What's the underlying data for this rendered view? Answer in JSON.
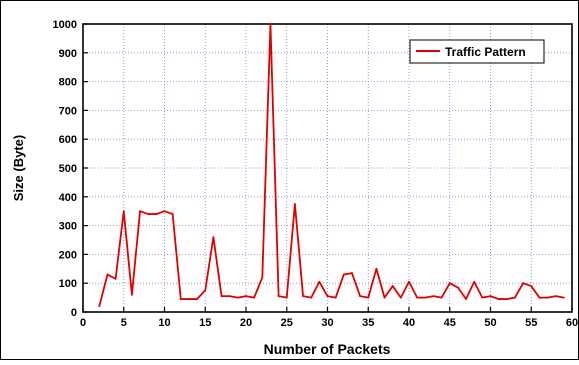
{
  "chart_data": {
    "type": "line",
    "xlabel": "Number of Packets",
    "ylabel": "Size (Byte)",
    "xlim": [
      0,
      60
    ],
    "ylim": [
      0,
      1000
    ],
    "x_ticks": [
      0,
      5,
      10,
      15,
      20,
      25,
      30,
      35,
      40,
      45,
      50,
      55,
      60
    ],
    "y_ticks": [
      0,
      100,
      200,
      300,
      400,
      500,
      600,
      700,
      800,
      900,
      1000
    ],
    "grid": true,
    "legend_position": "top-right",
    "series": [
      {
        "name": "Traffic Pattern",
        "color": "#e00000",
        "x": [
          2,
          3,
          4,
          5,
          6,
          7,
          8,
          9,
          10,
          11,
          12,
          13,
          14,
          15,
          16,
          17,
          18,
          19,
          20,
          21,
          22,
          23,
          24,
          25,
          26,
          27,
          28,
          29,
          30,
          31,
          32,
          33,
          34,
          35,
          36,
          37,
          38,
          39,
          40,
          41,
          42,
          43,
          44,
          45,
          46,
          47,
          48,
          49,
          50,
          51,
          52,
          53,
          54,
          55,
          56,
          57,
          58,
          59
        ],
        "y": [
          20,
          130,
          115,
          350,
          60,
          350,
          340,
          340,
          350,
          340,
          45,
          45,
          45,
          75,
          260,
          55,
          55,
          50,
          55,
          50,
          120,
          1000,
          55,
          50,
          375,
          55,
          50,
          105,
          55,
          50,
          130,
          135,
          55,
          50,
          150,
          50,
          90,
          50,
          105,
          50,
          50,
          55,
          50,
          100,
          85,
          45,
          105,
          50,
          55,
          45,
          45,
          50,
          100,
          90,
          50,
          50,
          55,
          50
        ]
      }
    ]
  }
}
